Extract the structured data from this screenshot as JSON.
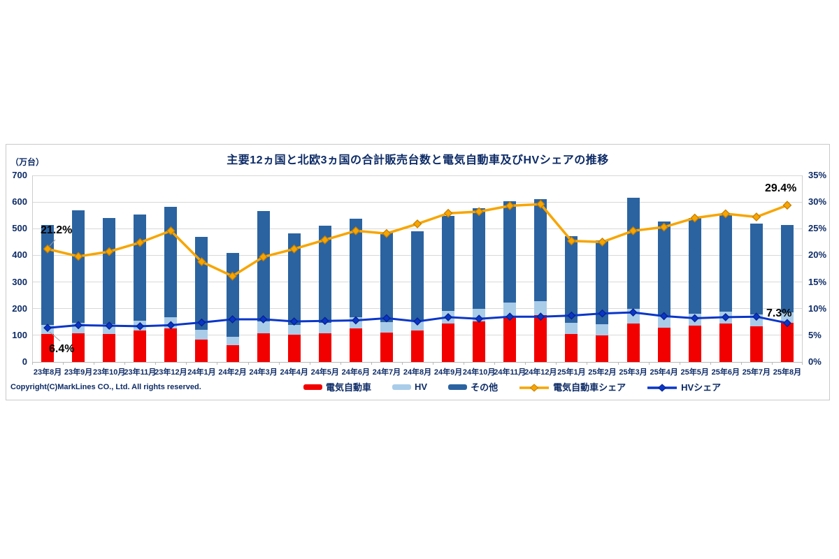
{
  "page": {
    "copyright": "Copyright(C)MarkLines CO., Ltd. All rights reserved."
  },
  "chart_data": {
    "type": "bar",
    "subtype": "stacked-bar-with-share-lines",
    "title": "主要12ヵ国と北欧3ヵ国の合計販売台数と電気自動車及びHVシェアの推移",
    "left_axis": {
      "unit_label": "（万台）",
      "min": 0,
      "max": 700,
      "step": 100
    },
    "right_axis": {
      "min": 0,
      "max": 35,
      "step": 5,
      "suffix": "%"
    },
    "grid": "horizontal",
    "legend_position": "bottom",
    "categories": [
      "23年8月",
      "23年9月",
      "23年10月",
      "23年11月",
      "23年12月",
      "24年1月",
      "24年2月",
      "24年3月",
      "24年4月",
      "24年5月",
      "24年6月",
      "24年7月",
      "24年8月",
      "24年9月",
      "24年10月",
      "24年11月",
      "24年12月",
      "25年1月",
      "25年2月",
      "25年3月",
      "25年4月",
      "25年5月",
      "25年6月",
      "25年7月",
      "25年8月"
    ],
    "totals": [
      515,
      568,
      539,
      554,
      581,
      469,
      408,
      566,
      483,
      511,
      538,
      488,
      491,
      547,
      577,
      603,
      612,
      473,
      455,
      617,
      526,
      541,
      552,
      520,
      515
    ],
    "series": [
      {
        "name": "電気自動車",
        "type": "bar",
        "axis": "left",
        "color": "#f20000",
        "values": [
          105,
          108,
          105,
          118,
          127,
          85,
          62,
          108,
          102,
          108,
          126,
          110,
          119,
          145,
          152,
          171,
          176,
          106,
          100,
          143,
          128,
          137,
          143,
          135,
          148
        ]
      },
      {
        "name": "HV",
        "type": "bar",
        "axis": "left",
        "color": "#a9cce9",
        "values": [
          33,
          39,
          37,
          37,
          40,
          35,
          33,
          45,
          37,
          39,
          42,
          40,
          37,
          46,
          47,
          51,
          52,
          41,
          41,
          57,
          45,
          44,
          46,
          44,
          38
        ]
      },
      {
        "name": "その他",
        "type": "bar",
        "axis": "left",
        "color": "#2b63a1",
        "values": [
          377,
          421,
          397,
          399,
          414,
          349,
          313,
          413,
          344,
          364,
          370,
          338,
          335,
          356,
          378,
          381,
          384,
          326,
          314,
          417,
          353,
          360,
          363,
          341,
          329
        ]
      },
      {
        "name": "電気自動車シェア",
        "type": "line",
        "axis": "right",
        "color": "#f7a500",
        "marker_stroke": "#c77f00",
        "values": [
          21.2,
          19.8,
          20.7,
          22.4,
          24.6,
          18.8,
          16.1,
          19.7,
          21.2,
          22.9,
          24.6,
          24.1,
          25.9,
          27.9,
          28.2,
          29.3,
          29.6,
          22.7,
          22.5,
          24.6,
          25.3,
          27.0,
          27.8,
          27.2,
          29.4
        ]
      },
      {
        "name": "HVシェア",
        "type": "line",
        "axis": "right",
        "color": "#0a36c8",
        "marker_stroke": "#06228e",
        "values": [
          6.4,
          6.9,
          6.8,
          6.7,
          6.9,
          7.4,
          8.0,
          8.0,
          7.6,
          7.7,
          7.8,
          8.2,
          7.6,
          8.4,
          8.1,
          8.5,
          8.5,
          8.7,
          9.1,
          9.3,
          8.6,
          8.2,
          8.4,
          8.5,
          7.3
        ]
      }
    ],
    "annotations": [
      {
        "text": "21.2%",
        "series": "電気自動車シェア",
        "index": 0
      },
      {
        "text": "6.4%",
        "series": "HVシェア",
        "index": 0
      },
      {
        "text": "29.4%",
        "series": "電気自動車シェア",
        "index": 24
      },
      {
        "text": "7.3%",
        "series": "HVシェア",
        "index": 24
      }
    ]
  }
}
